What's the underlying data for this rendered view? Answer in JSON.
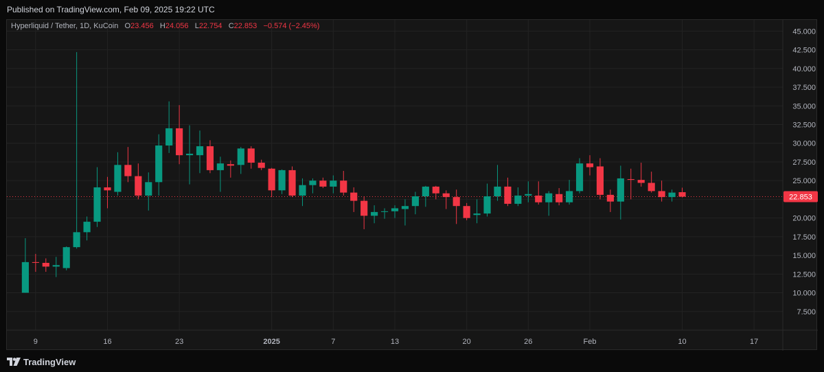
{
  "header": {
    "published_text": "Published on TradingView.com, Feb 09, 2025 19:22 UTC"
  },
  "legend": {
    "symbol": "Hyperliquid / Tether, 1D, KuCoin",
    "o_label": "O",
    "o_value": "23.456",
    "h_label": "H",
    "h_value": "24.056",
    "l_label": "L",
    "l_value": "22.754",
    "c_label": "C",
    "c_value": "22.853",
    "change": "−0.574 (−2.45%)"
  },
  "footer": {
    "brand": "TradingView"
  },
  "colors": {
    "up": "#089981",
    "down": "#f23645",
    "grid": "#232323",
    "axis_text": "#b2b5be",
    "price_tag_bg": "#f23645"
  },
  "price_tag": "22.853",
  "chart_data": {
    "type": "candlestick",
    "title": "Hyperliquid / Tether, 1D, KuCoin",
    "ylim": [
      5.0,
      46.5
    ],
    "y_ticks": [
      "45.000",
      "42.500",
      "40.000",
      "37.500",
      "35.000",
      "32.500",
      "30.000",
      "27.500",
      "25.000",
      "22.500",
      "20.000",
      "17.500",
      "15.000",
      "12.500",
      "10.000",
      "7.500"
    ],
    "x_ticks": [
      {
        "label": "9",
        "day": 1
      },
      {
        "label": "16",
        "day": 8
      },
      {
        "label": "23",
        "day": 15
      },
      {
        "label": "2025",
        "day": 24
      },
      {
        "label": "7",
        "day": 30
      },
      {
        "label": "13",
        "day": 36
      },
      {
        "label": "20",
        "day": 43
      },
      {
        "label": "26",
        "day": 49
      },
      {
        "label": "Feb",
        "day": 55
      },
      {
        "label": "10",
        "day": 64
      },
      {
        "label": "17",
        "day": 71
      }
    ],
    "x_range_days": [
      -1.8,
      73.8
    ],
    "last_close": 22.853,
    "candles": [
      [
        0,
        10.0,
        17.3,
        10.0,
        14.1
      ],
      [
        1,
        14.1,
        15.2,
        12.8,
        14.0
      ],
      [
        2,
        14.0,
        14.6,
        12.8,
        13.5
      ],
      [
        3,
        13.5,
        14.8,
        12.1,
        13.7
      ],
      [
        4,
        13.3,
        16.2,
        13.0,
        16.1
      ],
      [
        5,
        16.1,
        42.2,
        15.9,
        18.1
      ],
      [
        6,
        18.1,
        20.2,
        17.0,
        19.5
      ],
      [
        7,
        19.5,
        26.8,
        18.8,
        24.1
      ],
      [
        8,
        24.1,
        25.5,
        21.3,
        23.7
      ],
      [
        9,
        23.5,
        28.8,
        23.0,
        27.1
      ],
      [
        10,
        27.1,
        29.5,
        24.8,
        25.6
      ],
      [
        11,
        25.6,
        27.3,
        22.5,
        23.0
      ],
      [
        12,
        23.0,
        26.1,
        21.0,
        24.8
      ],
      [
        13,
        24.8,
        31.2,
        23.0,
        29.7
      ],
      [
        14,
        29.7,
        35.6,
        28.7,
        32.0
      ],
      [
        15,
        32.0,
        35.1,
        27.2,
        28.4
      ],
      [
        16,
        28.4,
        32.4,
        24.5,
        28.6
      ],
      [
        17,
        28.4,
        31.7,
        26.0,
        29.6
      ],
      [
        18,
        29.6,
        30.4,
        26.0,
        26.4
      ],
      [
        19,
        26.4,
        28.2,
        23.5,
        27.3
      ],
      [
        20,
        27.2,
        27.7,
        25.4,
        27.0
      ],
      [
        21,
        27.1,
        29.5,
        25.9,
        29.3
      ],
      [
        22,
        29.3,
        29.6,
        26.6,
        27.4
      ],
      [
        23,
        27.4,
        27.8,
        26.4,
        26.7
      ],
      [
        24,
        26.6,
        26.7,
        22.8,
        23.7
      ],
      [
        25,
        23.7,
        26.5,
        23.2,
        26.4
      ],
      [
        26,
        26.4,
        26.9,
        22.8,
        23.0
      ],
      [
        27,
        23.0,
        25.3,
        21.6,
        24.4
      ],
      [
        28,
        24.4,
        25.3,
        23.3,
        25.0
      ],
      [
        29,
        25.0,
        25.4,
        24.0,
        24.2
      ],
      [
        30,
        24.2,
        25.7,
        23.3,
        25.0
      ],
      [
        31,
        25.0,
        26.3,
        23.0,
        23.4
      ],
      [
        32,
        23.4,
        24.1,
        20.8,
        22.3
      ],
      [
        33,
        22.3,
        22.9,
        18.5,
        20.3
      ],
      [
        34,
        20.3,
        21.7,
        19.3,
        20.8
      ],
      [
        35,
        20.8,
        21.3,
        19.9,
        20.9
      ],
      [
        36,
        20.9,
        21.7,
        20.0,
        21.3
      ],
      [
        37,
        21.2,
        22.5,
        19.0,
        21.6
      ],
      [
        38,
        21.6,
        23.5,
        20.5,
        22.9
      ],
      [
        39,
        22.9,
        24.3,
        21.5,
        24.2
      ],
      [
        40,
        24.2,
        24.3,
        22.5,
        23.3
      ],
      [
        41,
        23.3,
        23.7,
        21.2,
        22.8
      ],
      [
        42,
        22.8,
        23.8,
        19.2,
        21.6
      ],
      [
        43,
        21.6,
        22.0,
        19.7,
        20.0
      ],
      [
        44,
        20.4,
        22.5,
        19.3,
        20.6
      ],
      [
        45,
        20.6,
        24.6,
        20.2,
        22.9
      ],
      [
        46,
        22.9,
        27.1,
        22.3,
        24.2
      ],
      [
        47,
        24.2,
        25.4,
        21.6,
        21.9
      ],
      [
        48,
        21.9,
        24.1,
        21.6,
        23.0
      ],
      [
        49,
        23.0,
        24.9,
        22.1,
        23.2
      ],
      [
        50,
        23.0,
        24.9,
        21.8,
        22.1
      ],
      [
        51,
        22.1,
        23.6,
        20.3,
        23.3
      ],
      [
        52,
        23.2,
        24.0,
        21.7,
        22.1
      ],
      [
        53,
        22.1,
        25.1,
        21.8,
        23.6
      ],
      [
        54,
        23.6,
        28.0,
        23.3,
        27.3
      ],
      [
        55,
        27.3,
        28.4,
        25.7,
        26.8
      ],
      [
        56,
        26.9,
        28.0,
        22.5,
        23.1
      ],
      [
        57,
        23.1,
        23.8,
        20.8,
        22.2
      ],
      [
        58,
        22.2,
        27.0,
        19.8,
        25.3
      ],
      [
        59,
        25.2,
        26.6,
        22.5,
        25.1
      ],
      [
        60,
        25.1,
        27.4,
        24.2,
        24.7
      ],
      [
        61,
        24.7,
        26.2,
        23.4,
        23.6
      ],
      [
        62,
        23.6,
        25.0,
        22.2,
        22.8
      ],
      [
        63,
        22.8,
        23.8,
        22.2,
        23.4
      ],
      [
        64,
        23.456,
        24.056,
        22.754,
        22.853
      ]
    ]
  }
}
